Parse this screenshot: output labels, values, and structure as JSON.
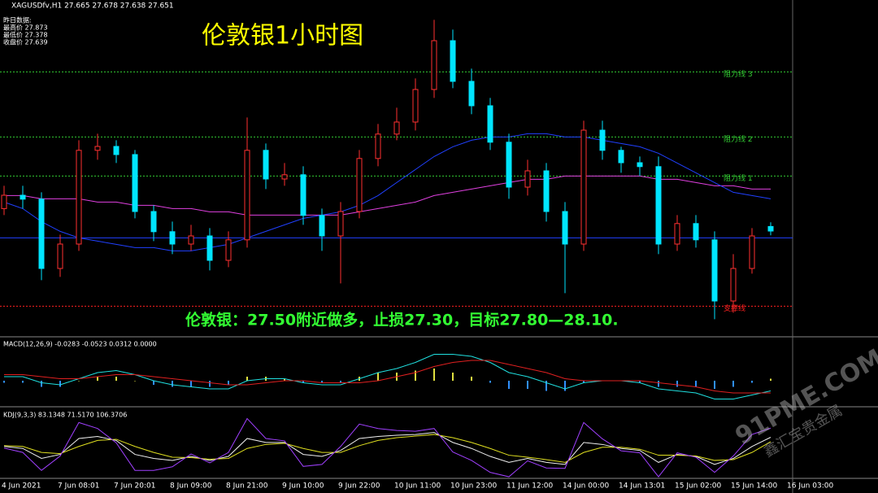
{
  "header": {
    "symbol_line": "XAGUSDfv,H1  27.665 27.678 27.638 27.651",
    "info_title": "昨日数据:",
    "info_lines": [
      "最高价 27.873",
      "最低价 27.378",
      "收盘价 27.639"
    ]
  },
  "watermark": {
    "site": "91PME.COM",
    "brand": "鑫汇宝贵金属"
  },
  "chart_data": [
    {
      "type": "candlestick",
      "title": "伦敦银1小时图",
      "annotation": "伦敦银：27.50附近做多，止损27.30，目标27.80—28.10.",
      "ylim": [
        27.336,
        28.361
      ],
      "up_color": "#ff3030",
      "down_color": "#00e5ff",
      "open": [
        27.72,
        27.761,
        27.749,
        27.536,
        27.611,
        27.899,
        27.911,
        27.886,
        27.711,
        27.649,
        27.611,
        27.636,
        27.561,
        27.624,
        27.899,
        27.811,
        27.824,
        27.699,
        27.636,
        27.711,
        27.874,
        27.949,
        27.986,
        28.086,
        28.236,
        28.111,
        28.036,
        27.924,
        27.786,
        27.836,
        27.711,
        27.611,
        27.961,
        27.899,
        27.861,
        27.849,
        27.611,
        27.674,
        27.624,
        27.436,
        27.536,
        27.665
      ],
      "high": [
        27.79,
        27.79,
        27.77,
        27.64,
        27.93,
        27.95,
        27.93,
        27.9,
        27.73,
        27.68,
        27.67,
        27.66,
        27.65,
        28.0,
        27.92,
        27.86,
        27.85,
        27.72,
        27.74,
        27.9,
        27.98,
        28.03,
        28.12,
        28.3,
        28.27,
        28.15,
        28.06,
        27.95,
        27.87,
        27.86,
        27.74,
        27.99,
        27.99,
        27.91,
        27.88,
        27.88,
        27.7,
        27.7,
        27.65,
        27.58,
        27.66,
        27.678
      ],
      "low": [
        27.7,
        27.72,
        27.5,
        27.51,
        27.59,
        27.87,
        27.86,
        27.69,
        27.62,
        27.58,
        27.59,
        27.53,
        27.54,
        27.6,
        27.78,
        27.79,
        27.67,
        27.59,
        27.49,
        27.69,
        27.85,
        27.93,
        27.96,
        28.06,
        28.09,
        28.01,
        27.9,
        27.75,
        27.76,
        27.68,
        27.46,
        27.59,
        27.87,
        27.83,
        27.82,
        27.58,
        27.59,
        27.6,
        27.38,
        27.4,
        27.52,
        27.638
      ],
      "close": [
        27.761,
        27.749,
        27.536,
        27.611,
        27.899,
        27.911,
        27.886,
        27.711,
        27.649,
        27.611,
        27.636,
        27.561,
        27.624,
        27.899,
        27.811,
        27.824,
        27.699,
        27.636,
        27.711,
        27.874,
        27.949,
        27.986,
        28.086,
        28.236,
        28.111,
        28.036,
        27.924,
        27.786,
        27.836,
        27.711,
        27.611,
        27.961,
        27.899,
        27.861,
        27.849,
        27.611,
        27.674,
        27.624,
        27.436,
        27.536,
        27.636,
        27.651
      ],
      "series": [
        {
          "color": "#e040e0",
          "values": [
            27.76,
            27.76,
            27.75,
            27.75,
            27.75,
            27.74,
            27.74,
            27.73,
            27.73,
            27.72,
            27.72,
            27.71,
            27.71,
            27.7,
            27.7,
            27.7,
            27.7,
            27.7,
            27.7,
            27.71,
            27.72,
            27.73,
            27.74,
            27.76,
            27.77,
            27.78,
            27.79,
            27.8,
            27.81,
            27.81,
            27.82,
            27.82,
            27.82,
            27.82,
            27.82,
            27.81,
            27.81,
            27.8,
            27.79,
            27.79,
            27.78,
            27.78
          ]
        },
        {
          "color": "#2040ff",
          "values": [
            27.74,
            27.72,
            27.68,
            27.65,
            27.63,
            27.62,
            27.61,
            27.6,
            27.6,
            27.59,
            27.59,
            27.6,
            27.61,
            27.63,
            27.65,
            27.67,
            27.69,
            27.7,
            27.71,
            27.73,
            27.76,
            27.8,
            27.84,
            27.88,
            27.91,
            27.93,
            27.94,
            27.94,
            27.95,
            27.95,
            27.94,
            27.94,
            27.93,
            27.92,
            27.91,
            27.89,
            27.86,
            27.83,
            27.8,
            27.77,
            27.76,
            27.75
          ]
        }
      ],
      "levels": [
        {
          "label": "阻力线 3",
          "value": 28.14,
          "color": "#33cc33"
        },
        {
          "label": "阻力线 2",
          "value": 27.94,
          "color": "#33cc33"
        },
        {
          "label": "阻力线 1",
          "value": 27.82,
          "color": "#33cc33"
        },
        {
          "label": "支撑线",
          "value": 27.42,
          "color": "#ff2020"
        }
      ],
      "hline": {
        "value": 27.63,
        "color": "#2040ff"
      },
      "time_labels": [
        "4 Jun 2021",
        "7 Jun 08:01",
        "7 Jun 20:01",
        "8 Jun 09:00",
        "8 Jun 21:00",
        "9 Jun 10:00",
        "9 Jun 22:00",
        "10 Jun 11:00",
        "10 Jun 23:00",
        "11 Jun 12:00",
        "14 Jun 00:00",
        "14 Jun 13:01",
        "15 Jun 02:00",
        "15 Jun 14:00",
        "16 Jun 03:00"
      ]
    },
    {
      "type": "macd",
      "title": "MACD(12,26,9) -0.0283 -0.0523 0.0312 0.0000",
      "ylim": [
        -0.12,
        0.16
      ],
      "pos_color": "#e0e040",
      "neg_color": "#3090ff",
      "histogram": [
        -0.01,
        -0.01,
        -0.03,
        -0.03,
        0,
        0.02,
        0.02,
        0,
        -0.02,
        -0.03,
        -0.03,
        -0.03,
        -0.02,
        0.02,
        0.02,
        0.01,
        -0.01,
        -0.01,
        -0.01,
        0.02,
        0.04,
        0.04,
        0.05,
        0.06,
        0.04,
        0.02,
        -0.01,
        -0.04,
        -0.04,
        -0.05,
        -0.05,
        -0.01,
        0,
        0,
        -0.01,
        -0.03,
        -0.03,
        -0.03,
        -0.04,
        -0.03,
        -0.01,
        0.01
      ],
      "series": [
        {
          "color": "#20e0e0",
          "values": [
            0.02,
            0.02,
            -0.01,
            -0.02,
            0.01,
            0.04,
            0.05,
            0.03,
            0.0,
            -0.02,
            -0.03,
            -0.04,
            -0.04,
            0.0,
            0.01,
            0.01,
            -0.01,
            -0.02,
            -0.02,
            0.01,
            0.04,
            0.06,
            0.09,
            0.13,
            0.13,
            0.12,
            0.09,
            0.04,
            0.02,
            -0.01,
            -0.04,
            -0.01,
            0.0,
            0.0,
            -0.01,
            -0.04,
            -0.05,
            -0.06,
            -0.09,
            -0.09,
            -0.07,
            -0.05
          ]
        },
        {
          "color": "#e02020",
          "values": [
            0.03,
            0.03,
            0.02,
            0.01,
            0.01,
            0.02,
            0.03,
            0.03,
            0.02,
            0.01,
            0.0,
            -0.01,
            -0.02,
            -0.02,
            -0.01,
            0.0,
            0.0,
            -0.01,
            -0.01,
            -0.01,
            0.0,
            0.02,
            0.04,
            0.07,
            0.09,
            0.1,
            0.1,
            0.08,
            0.06,
            0.04,
            0.01,
            0.0,
            0.0,
            0.0,
            0.0,
            -0.01,
            -0.02,
            -0.03,
            -0.05,
            -0.06,
            -0.06,
            -0.06
          ]
        }
      ]
    },
    {
      "type": "line",
      "title": "KDJ(9,3,3) 83.1348 71.5170 106.3706",
      "ylim": [
        -20,
        135
      ],
      "series": [
        {
          "color": "#f0f0f0",
          "values": [
            60,
            55,
            30,
            40,
            80,
            85,
            75,
            40,
            30,
            25,
            35,
            25,
            35,
            80,
            70,
            70,
            40,
            35,
            50,
            80,
            85,
            88,
            90,
            95,
            70,
            55,
            35,
            20,
            30,
            20,
            15,
            70,
            65,
            55,
            50,
            20,
            40,
            35,
            15,
            30,
            60,
            83
          ]
        },
        {
          "color": "#e0e020",
          "values": [
            62,
            60,
            45,
            42,
            60,
            75,
            78,
            60,
            45,
            33,
            32,
            28,
            30,
            55,
            65,
            68,
            55,
            45,
            45,
            62,
            75,
            82,
            86,
            90,
            82,
            70,
            55,
            38,
            33,
            27,
            20,
            45,
            58,
            58,
            53,
            38,
            38,
            36,
            25,
            27,
            45,
            72
          ]
        },
        {
          "color": "#a040ff",
          "values": [
            56,
            45,
            0,
            36,
            120,
            105,
            69,
            0,
            0,
            9,
            41,
            19,
            45,
            130,
            80,
            74,
            10,
            15,
            60,
            116,
            105,
            100,
            98,
            105,
            46,
            25,
            -5,
            -16,
            24,
            6,
            5,
            120,
            79,
            49,
            44,
            -16,
            44,
            33,
            -5,
            36,
            90,
            106
          ]
        }
      ]
    }
  ]
}
